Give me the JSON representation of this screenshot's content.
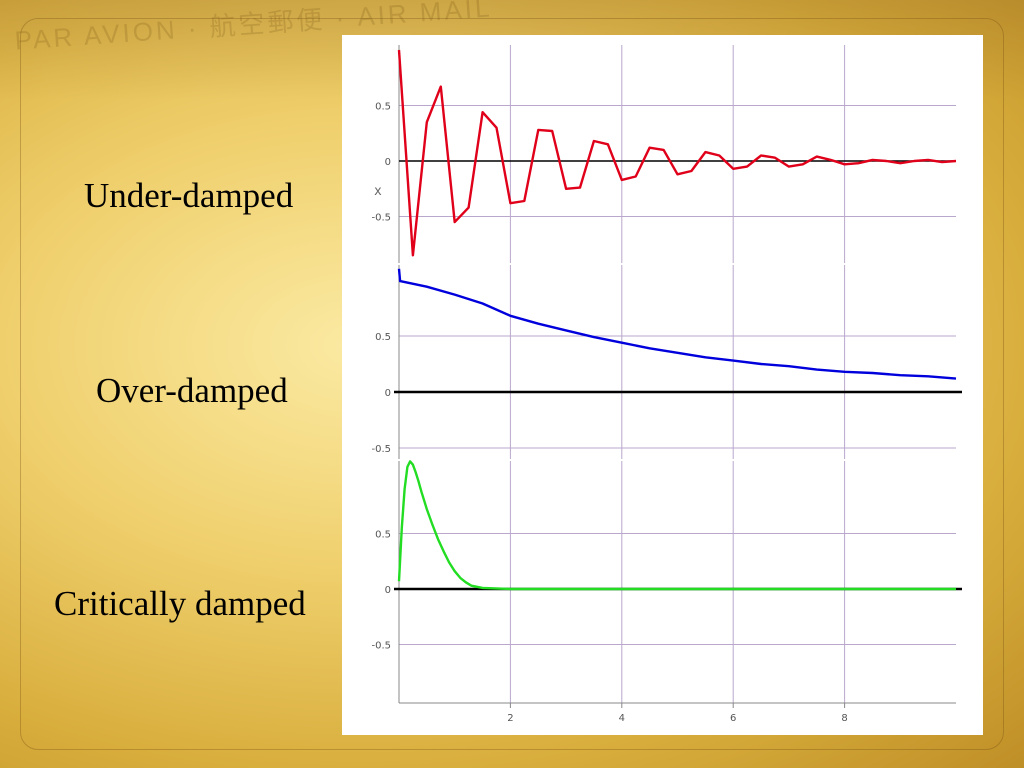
{
  "slide": {
    "label_under": "Under-damped",
    "label_over": "Over-damped",
    "label_critical": "Critically damped",
    "background_color": "#efcf6c"
  },
  "chart_data": [
    {
      "type": "line",
      "series": [
        {
          "color": "#e0001a",
          "x": [
            0,
            0.25,
            0.5,
            0.75,
            1,
            1.25,
            1.5,
            1.75,
            2,
            2.25,
            2.5,
            2.75,
            3,
            3.25,
            3.5,
            3.75,
            4,
            4.25,
            4.5,
            4.75,
            5,
            5.25,
            5.5,
            5.75,
            6,
            6.25,
            6.5,
            6.75,
            7,
            7.25,
            7.5,
            7.75,
            8,
            8.25,
            8.5,
            8.75,
            9,
            9.25,
            9.5,
            9.75,
            10
          ],
          "y": [
            1.0,
            -0.85,
            0.35,
            0.67,
            -0.55,
            -0.42,
            0.44,
            0.3,
            -0.38,
            -0.36,
            0.28,
            0.27,
            -0.25,
            -0.24,
            0.18,
            0.15,
            -0.17,
            -0.14,
            0.12,
            0.1,
            -0.12,
            -0.09,
            0.08,
            0.05,
            -0.07,
            -0.05,
            0.05,
            0.03,
            -0.05,
            -0.03,
            0.04,
            0.01,
            -0.03,
            -0.02,
            0.01,
            0.0,
            -0.02,
            0.0,
            0.01,
            -0.01,
            0.0
          ]
        }
      ],
      "xlim": [
        0,
        10
      ],
      "ylim": [
        -0.9,
        1.0
      ],
      "yticks": [
        0.5,
        0,
        -0.5
      ],
      "ytick_labels": [
        "0.5",
        "0",
        "-0.5"
      ],
      "xticks": [
        2,
        4,
        6,
        8
      ],
      "xlabel": "",
      "ylabel": "x",
      "zero_line_color": "#000000"
    },
    {
      "type": "line",
      "series": [
        {
          "color": "#0000dd",
          "x": [
            0,
            0.02,
            0.5,
            1,
            1.5,
            2,
            2.5,
            3,
            3.5,
            4,
            4.5,
            5,
            5.5,
            6,
            6.5,
            7,
            7.5,
            8,
            8.5,
            9,
            9.5,
            10
          ],
          "y": [
            1.1,
            0.99,
            0.94,
            0.87,
            0.79,
            0.68,
            0.61,
            0.55,
            0.49,
            0.44,
            0.39,
            0.35,
            0.31,
            0.28,
            0.25,
            0.23,
            0.2,
            0.18,
            0.17,
            0.15,
            0.14,
            0.12
          ]
        }
      ],
      "xlim": [
        0,
        10
      ],
      "ylim": [
        -0.5,
        1.0
      ],
      "yticks": [
        0.5,
        0,
        -0.5
      ],
      "ytick_labels": [
        "0.5",
        "0",
        "-0.5"
      ],
      "xticks": [
        2,
        4,
        6,
        8
      ],
      "xlabel": "",
      "ylabel": "",
      "zero_line_color": "#000000"
    },
    {
      "type": "line",
      "series": [
        {
          "color": "#22dd22",
          "x": [
            0,
            0.05,
            0.1,
            0.15,
            0.2,
            0.25,
            0.3,
            0.35,
            0.4,
            0.5,
            0.6,
            0.7,
            0.8,
            0.9,
            1.0,
            1.1,
            1.2,
            1.3,
            1.5,
            2,
            3,
            4,
            5,
            6,
            7,
            8,
            9,
            10
          ],
          "y": [
            0.07,
            0.55,
            0.9,
            1.1,
            1.15,
            1.12,
            1.05,
            0.97,
            0.88,
            0.72,
            0.58,
            0.45,
            0.34,
            0.24,
            0.16,
            0.1,
            0.06,
            0.03,
            0.01,
            0.0,
            0.0,
            0.0,
            0.0,
            0.0,
            0.0,
            0.0,
            0.0,
            0.0
          ]
        }
      ],
      "xlim": [
        0,
        10
      ],
      "ylim": [
        -1.0,
        1.1
      ],
      "yticks": [
        0.5,
        0,
        -0.5
      ],
      "ytick_labels": [
        "0.5",
        "0",
        "-0.5"
      ],
      "xticks": [
        2,
        4,
        6,
        8
      ],
      "xtick_labels": [
        "2",
        "4",
        "6",
        "8"
      ],
      "xlabel": "",
      "ylabel": "",
      "zero_line_color": "#000000"
    }
  ]
}
